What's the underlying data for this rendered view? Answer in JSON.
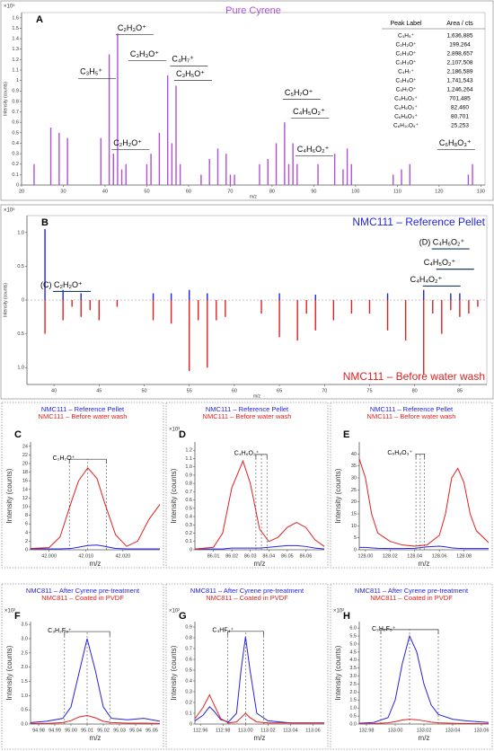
{
  "chart_data": [
    {
      "type": "stem",
      "panel": "A",
      "title": "Pure Cyrene",
      "multiplier": "×10⁵",
      "xlabel": "m/z",
      "ylabel": "Intensity (counts)",
      "color": "#b04fd8",
      "xlim": [
        20,
        131
      ],
      "ylim": [
        0,
        1.65
      ],
      "xticks": [
        20,
        30,
        40,
        50,
        60,
        70,
        80,
        90,
        100,
        110,
        120,
        130
      ],
      "yticks": [
        0,
        0.1,
        0.2,
        0.3,
        0.4,
        0.5,
        0.6,
        0.7,
        0.8,
        0.9,
        1,
        1.1,
        1.2,
        1.3,
        1.4,
        1.5,
        1.6
      ],
      "x": [
        23,
        27,
        29,
        31,
        39,
        41,
        42,
        43,
        44,
        45,
        50,
        51,
        53,
        55,
        56,
        57,
        58,
        63,
        65,
        67,
        69,
        70,
        71,
        77,
        79,
        81,
        83,
        84,
        85,
        86,
        91,
        95,
        97,
        98,
        99,
        109,
        111,
        113,
        127,
        128
      ],
      "values": [
        0.2,
        0.55,
        0.5,
        0.45,
        0.45,
        1.25,
        0.3,
        1.45,
        0.15,
        0.2,
        0.2,
        0.3,
        0.5,
        1.05,
        0.4,
        0.95,
        0.2,
        0.1,
        0.25,
        0.35,
        0.3,
        0.1,
        0.1,
        0.2,
        0.25,
        0.4,
        0.6,
        0.2,
        0.4,
        0.2,
        0.2,
        0.3,
        0.15,
        0.35,
        0.2,
        0.1,
        0.15,
        0.2,
        0.1,
        0.2
      ],
      "annotations": [
        {
          "text": "C₃H₅⁺",
          "x": 34,
          "y": 1.08
        },
        {
          "text": "C₂H₃O⁺",
          "x": 43,
          "y": 1.5
        },
        {
          "text": "C₃H₃O⁺",
          "x": 46,
          "y": 1.25
        },
        {
          "text": "C₄H₇⁺",
          "x": 56,
          "y": 1.2
        },
        {
          "text": "C₃H₅O⁺",
          "x": 57,
          "y": 1.06
        },
        {
          "text": "C₂H₂O⁺",
          "x": 42,
          "y": 0.4
        },
        {
          "text": "C₅H₇O⁺",
          "x": 83,
          "y": 0.88
        },
        {
          "text": "C₄H₅O₂⁺",
          "x": 85,
          "y": 0.7
        },
        {
          "text": "C₄H₆O₂⁺",
          "x": 86,
          "y": 0.34
        },
        {
          "text": "C₆H₈O₃⁺",
          "x": 120,
          "y": 0.4
        }
      ],
      "table": {
        "columns": [
          "Peak Label",
          "Area / cts"
        ],
        "rows": [
          [
            "C₃H₅⁺",
            "1,636,885"
          ],
          [
            "C₂H₂O⁺",
            "199,264"
          ],
          [
            "C₂H₃O⁺",
            "2,898,657"
          ],
          [
            "C₃H₃O⁺",
            "2,107,508"
          ],
          [
            "C₄H₇⁺",
            "2,186,589"
          ],
          [
            "C₃H₅O⁺",
            "1,741,543"
          ],
          [
            "C₅H₇O⁺",
            "1,246,264"
          ],
          [
            "C₄H₅O₂⁺",
            "701,485"
          ],
          [
            "C₄H₆O₂⁺",
            "82,460"
          ],
          [
            "C₆H₈O₃⁺",
            "80,701"
          ],
          [
            "C₆H₁₀O₄⁺",
            "25,253"
          ]
        ]
      }
    },
    {
      "type": "mirror",
      "panel": "B",
      "multiplier": "×10⁵",
      "xlabel": "m/z",
      "ylabel": "Intensity (counts)",
      "legend": "right",
      "xlim": [
        37,
        88
      ],
      "ylim": [
        -1.25,
        1.25
      ],
      "xticks": [
        40,
        45,
        50,
        55,
        60,
        65,
        70,
        75,
        80,
        85
      ],
      "yticks": [
        {
          "value": 1,
          "label": "1.0"
        },
        0.5,
        0,
        {
          "value": -0.5,
          "label": "0.5"
        },
        {
          "value": -1,
          "label": "1.0"
        }
      ],
      "series": [
        {
          "name": "NMC111 – Reference Pellet",
          "color": "#2323e0",
          "x": [
            39,
            41,
            43,
            51,
            53,
            55,
            57,
            65,
            69,
            77,
            81,
            84,
            85
          ],
          "values": [
            1.05,
            0.15,
            0.1,
            0.1,
            0.1,
            0.15,
            0.1,
            0.1,
            0.08,
            0.1,
            0.15,
            0.1,
            0.1
          ]
        },
        {
          "name": "NMC111 – Before water wash",
          "color": "#e02020",
          "x": [
            39,
            41,
            42,
            43,
            44,
            45,
            47,
            51,
            53,
            55,
            56,
            57,
            58,
            59,
            63,
            65,
            67,
            68,
            69,
            71,
            73,
            75,
            77,
            79,
            81,
            82,
            83,
            84,
            85,
            86,
            87
          ],
          "values": [
            -0.5,
            -0.3,
            -0.1,
            -0.25,
            -0.15,
            -0.3,
            -0.1,
            -0.3,
            -0.35,
            -1.05,
            -0.3,
            -1.0,
            -0.3,
            -0.25,
            -0.2,
            -0.55,
            -0.6,
            -0.2,
            -0.45,
            -0.3,
            -0.2,
            -0.2,
            -0.45,
            -0.6,
            -1.1,
            -0.2,
            -0.5,
            -0.15,
            -0.25,
            -0.2,
            -0.1
          ]
        }
      ],
      "annotations": [
        {
          "text": "(C) C₂H₂O⁺",
          "x": 38.5,
          "y": 0.22
        },
        {
          "text": "(D) C₄H₆O₂⁺",
          "x": 80.5,
          "y": 0.85
        },
        {
          "text": "C₄H₅O₂⁺",
          "x": 81,
          "y": 0.55
        },
        {
          "text": "C₄H₄O₂⁺",
          "x": 79.5,
          "y": 0.3
        }
      ]
    },
    {
      "type": "line",
      "panel": "C",
      "xlabel": "m/z",
      "ylabel": "Intensity (counts)",
      "legend": "top",
      "xlim": [
        41.995,
        42.03
      ],
      "ylim": [
        0,
        25
      ],
      "xticks": [
        {
          "value": 42,
          "label": "42.000"
        },
        {
          "value": 42.01,
          "label": "42.010"
        },
        {
          "value": 42.02,
          "label": "42.020"
        }
      ],
      "yticks": [
        0,
        2,
        4,
        6,
        8,
        10,
        12,
        14,
        16,
        18,
        20,
        22,
        24
      ],
      "x": [
        41.995,
        42.0,
        42.003,
        42.006,
        42.008,
        42.0105,
        42.013,
        42.015,
        42.018,
        42.021,
        42.024,
        42.027,
        42.03
      ],
      "series": [
        {
          "name": "NMC111 – Reference Pellet",
          "color": "#2323e0",
          "values": [
            0.2,
            0.2,
            0.2,
            0.3,
            0.6,
            1,
            1.1,
            0.8,
            0.3,
            0.2,
            0.2,
            0.2,
            0.2
          ]
        },
        {
          "name": "NMC111 – Before water wash",
          "color": "#e02020",
          "values": [
            0.3,
            0.5,
            3,
            11,
            16,
            19,
            16.5,
            11,
            3.5,
            0.8,
            2,
            7,
            10.5
          ]
        }
      ],
      "annotation": {
        "text": "C₂H₂O⁺",
        "x": 42.004,
        "y": 21
      },
      "bracket_x": [
        42.0055,
        42.0105,
        42.0155
      ]
    },
    {
      "type": "line",
      "panel": "D",
      "multiplier": "×10³",
      "xlabel": "m/z",
      "ylabel": "Intensity (counts)",
      "legend": "top",
      "xlim": [
        86.0,
        86.07
      ],
      "ylim": [
        0,
        1.3
      ],
      "xticks": [
        86.01,
        86.02,
        86.03,
        86.04,
        86.05,
        86.06
      ],
      "yticks": [
        0,
        0.1,
        0.2,
        0.3,
        0.4,
        0.5,
        0.6,
        0.7,
        0.8,
        0.9,
        {
          "value": 1,
          "label": "1.0"
        },
        1.1,
        1.2
      ],
      "x": [
        86.0,
        86.01,
        86.015,
        86.02,
        86.026,
        86.03,
        86.035,
        86.04,
        86.045,
        86.05,
        86.055,
        86.06,
        86.065,
        86.07
      ],
      "series": [
        {
          "name": "NMC111 – Reference Pellet",
          "color": "#2323e0",
          "values": [
            0.01,
            0.01,
            0.01,
            0.02,
            0.02,
            0.02,
            0.02,
            0.03,
            0.04,
            0.05,
            0.05,
            0.04,
            0.02,
            0.01
          ]
        },
        {
          "name": "NMC111 – Before water wash",
          "color": "#e02020",
          "values": [
            0.01,
            0.03,
            0.2,
            0.75,
            1.07,
            0.8,
            0.25,
            0.1,
            0.15,
            0.27,
            0.33,
            0.27,
            0.12,
            0.04
          ]
        }
      ],
      "annotation": {
        "text": "C₄H₆O₂⁺",
        "x": 86.028,
        "y": 1.15
      },
      "bracket_x": [
        86.033,
        86.036,
        86.039
      ]
    },
    {
      "type": "line",
      "panel": "E",
      "xlabel": "m/z",
      "ylabel": "Intensity (counts)",
      "legend": "top",
      "xlim": [
        127.995,
        128.1
      ],
      "ylim": [
        0,
        45
      ],
      "xticks": [
        {
          "value": 128,
          "label": "128.00"
        },
        128.02,
        128.04,
        128.06,
        128.08
      ],
      "yticks": [
        0,
        5,
        10,
        15,
        20,
        25,
        30,
        35,
        40
      ],
      "x": [
        127.995,
        128.0,
        128.005,
        128.01,
        128.02,
        128.03,
        128.04,
        128.05,
        128.06,
        128.065,
        128.07,
        128.075,
        128.08,
        128.085,
        128.09,
        128.1
      ],
      "series": [
        {
          "name": "NMC111 – Reference Pellet",
          "color": "#2323e0",
          "values": [
            1,
            1,
            0.8,
            0.6,
            0.5,
            0.5,
            0.6,
            1.2,
            1.5,
            1.2,
            0.8,
            0.6,
            0.5,
            0.5,
            0.5,
            0.5
          ]
        },
        {
          "name": "NMC111 – Before water wash",
          "color": "#e02020",
          "values": [
            38,
            30,
            15,
            7,
            3.5,
            2,
            1.5,
            2,
            6,
            15,
            30,
            34,
            28,
            15,
            8,
            3
          ]
        }
      ],
      "annotation": {
        "text": "C₆H₈O₃⁺",
        "x": 128.028,
        "y": 40
      },
      "bracket_x": [
        128.041,
        128.0445,
        128.048
      ]
    },
    {
      "type": "line",
      "panel": "F",
      "multiplier": "×10²",
      "xlabel": "m/z",
      "ylabel": "Intensity (counts)",
      "legend": "top",
      "xlim": [
        94.975,
        95.055
      ],
      "ylim": [
        0,
        3.6
      ],
      "xticks": [
        94.98,
        94.99,
        {
          "value": 95,
          "label": "95.00"
        },
        95.01,
        95.02,
        95.03,
        95.04,
        95.05
      ],
      "yticks": [
        {
          "value": 0,
          "label": "0.0"
        },
        0.5,
        {
          "value": 1,
          "label": "1.0"
        },
        1.5,
        {
          "value": 2,
          "label": "2.0"
        },
        2.5,
        {
          "value": 3,
          "label": "3.0"
        },
        3.5
      ],
      "x": [
        94.975,
        94.985,
        94.995,
        95.0,
        95.005,
        95.01,
        95.015,
        95.02,
        95.025,
        95.035,
        95.045,
        95.055
      ],
      "series": [
        {
          "name": "NMC811 – After Cyrene pre-treatment",
          "color": "#2323e0",
          "values": [
            0.05,
            0.1,
            0.2,
            0.6,
            1.8,
            3.0,
            1.9,
            0.6,
            0.2,
            0.15,
            0.2,
            0.1
          ]
        },
        {
          "name": "NMC811 – Coated in PVDF",
          "color": "#e02020",
          "values": [
            0.02,
            0.02,
            0.05,
            0.12,
            0.25,
            0.3,
            0.22,
            0.1,
            0.05,
            0.03,
            0.03,
            0.02
          ]
        }
      ],
      "annotation": {
        "text": "C₃H₂F₃⁺",
        "x": 94.993,
        "y": 3.25
      },
      "bracket_x": [
        94.996,
        95.01,
        95.024
      ]
    },
    {
      "type": "line",
      "panel": "G",
      "multiplier": "×10²",
      "xlabel": "m/z",
      "ylabel": "Intensity (counts)",
      "legend": "top",
      "xlim": [
        112.955,
        113.07
      ],
      "ylim": [
        0,
        0.95
      ],
      "xticks": [
        112.96,
        112.98,
        {
          "value": 113,
          "label": "113.00"
        },
        113.02,
        113.04,
        113.06
      ],
      "yticks": [
        0,
        0.1,
        0.2,
        0.3,
        0.4,
        0.5,
        0.6,
        0.7,
        0.8,
        0.9
      ],
      "x": [
        112.955,
        112.962,
        112.968,
        112.972,
        112.978,
        112.985,
        112.992,
        112.996,
        113.0,
        113.004,
        113.01,
        113.02,
        113.04,
        113.07
      ],
      "series": [
        {
          "name": "NMC811 – After Cyrene pre-treatment",
          "color": "#2323e0",
          "values": [
            0.03,
            0.08,
            0.16,
            0.12,
            0.04,
            0.02,
            0.1,
            0.5,
            0.81,
            0.5,
            0.1,
            0.03,
            0.01,
            0.01
          ]
        },
        {
          "name": "NMC811 – Coated in PVDF",
          "color": "#e02020",
          "values": [
            0.05,
            0.15,
            0.27,
            0.18,
            0.05,
            0.01,
            0.02,
            0.06,
            0.1,
            0.06,
            0.02,
            0.01,
            0.01,
            0.01
          ]
        }
      ],
      "annotation": {
        "text": "C₃HF₄⁺",
        "x": 112.98,
        "y": 0.86
      },
      "bracket_x": [
        112.984,
        113.0,
        113.016
      ]
    },
    {
      "type": "line",
      "panel": "H",
      "multiplier": "×10²",
      "xlabel": "m/z",
      "ylabel": "Intensity (counts)",
      "legend": "top",
      "xlim": [
        132.975,
        133.065
      ],
      "ylim": [
        0,
        6.4
      ],
      "xticks": [
        132.98,
        {
          "value": 133,
          "label": "133.00"
        },
        133.02,
        133.04,
        133.06
      ],
      "yticks": [
        {
          "value": 0,
          "label": "0.0"
        },
        0.5,
        {
          "value": 1,
          "label": "1.0"
        },
        1.5,
        {
          "value": 2,
          "label": "2.0"
        },
        2.5,
        {
          "value": 3,
          "label": "3.0"
        },
        3.5,
        {
          "value": 4,
          "label": "4.0"
        },
        4.5,
        {
          "value": 5,
          "label": "5.0"
        },
        5.5,
        {
          "value": 6,
          "label": "6.0"
        }
      ],
      "x": [
        132.975,
        132.985,
        132.995,
        133.0,
        133.005,
        133.01,
        133.015,
        133.02,
        133.025,
        133.03,
        133.04,
        133.05,
        133.065
      ],
      "series": [
        {
          "name": "NMC811 – After Cyrene pre-treatment",
          "color": "#2323e0",
          "values": [
            0.05,
            0.1,
            0.4,
            1.5,
            3.8,
            5.5,
            4.5,
            2.5,
            1.2,
            0.6,
            0.3,
            0.2,
            0.1
          ]
        },
        {
          "name": "NMC811 – Coated in PVDF",
          "color": "#e02020",
          "values": [
            0.02,
            0.03,
            0.08,
            0.15,
            0.25,
            0.3,
            0.27,
            0.2,
            0.12,
            0.08,
            0.05,
            0.03,
            0.02
          ]
        }
      ],
      "annotation": {
        "text": "C₃H₂F₅⁺",
        "x": 132.992,
        "y": 5.9
      },
      "bracket_x": [
        132.99,
        133.01,
        133.03
      ]
    }
  ]
}
